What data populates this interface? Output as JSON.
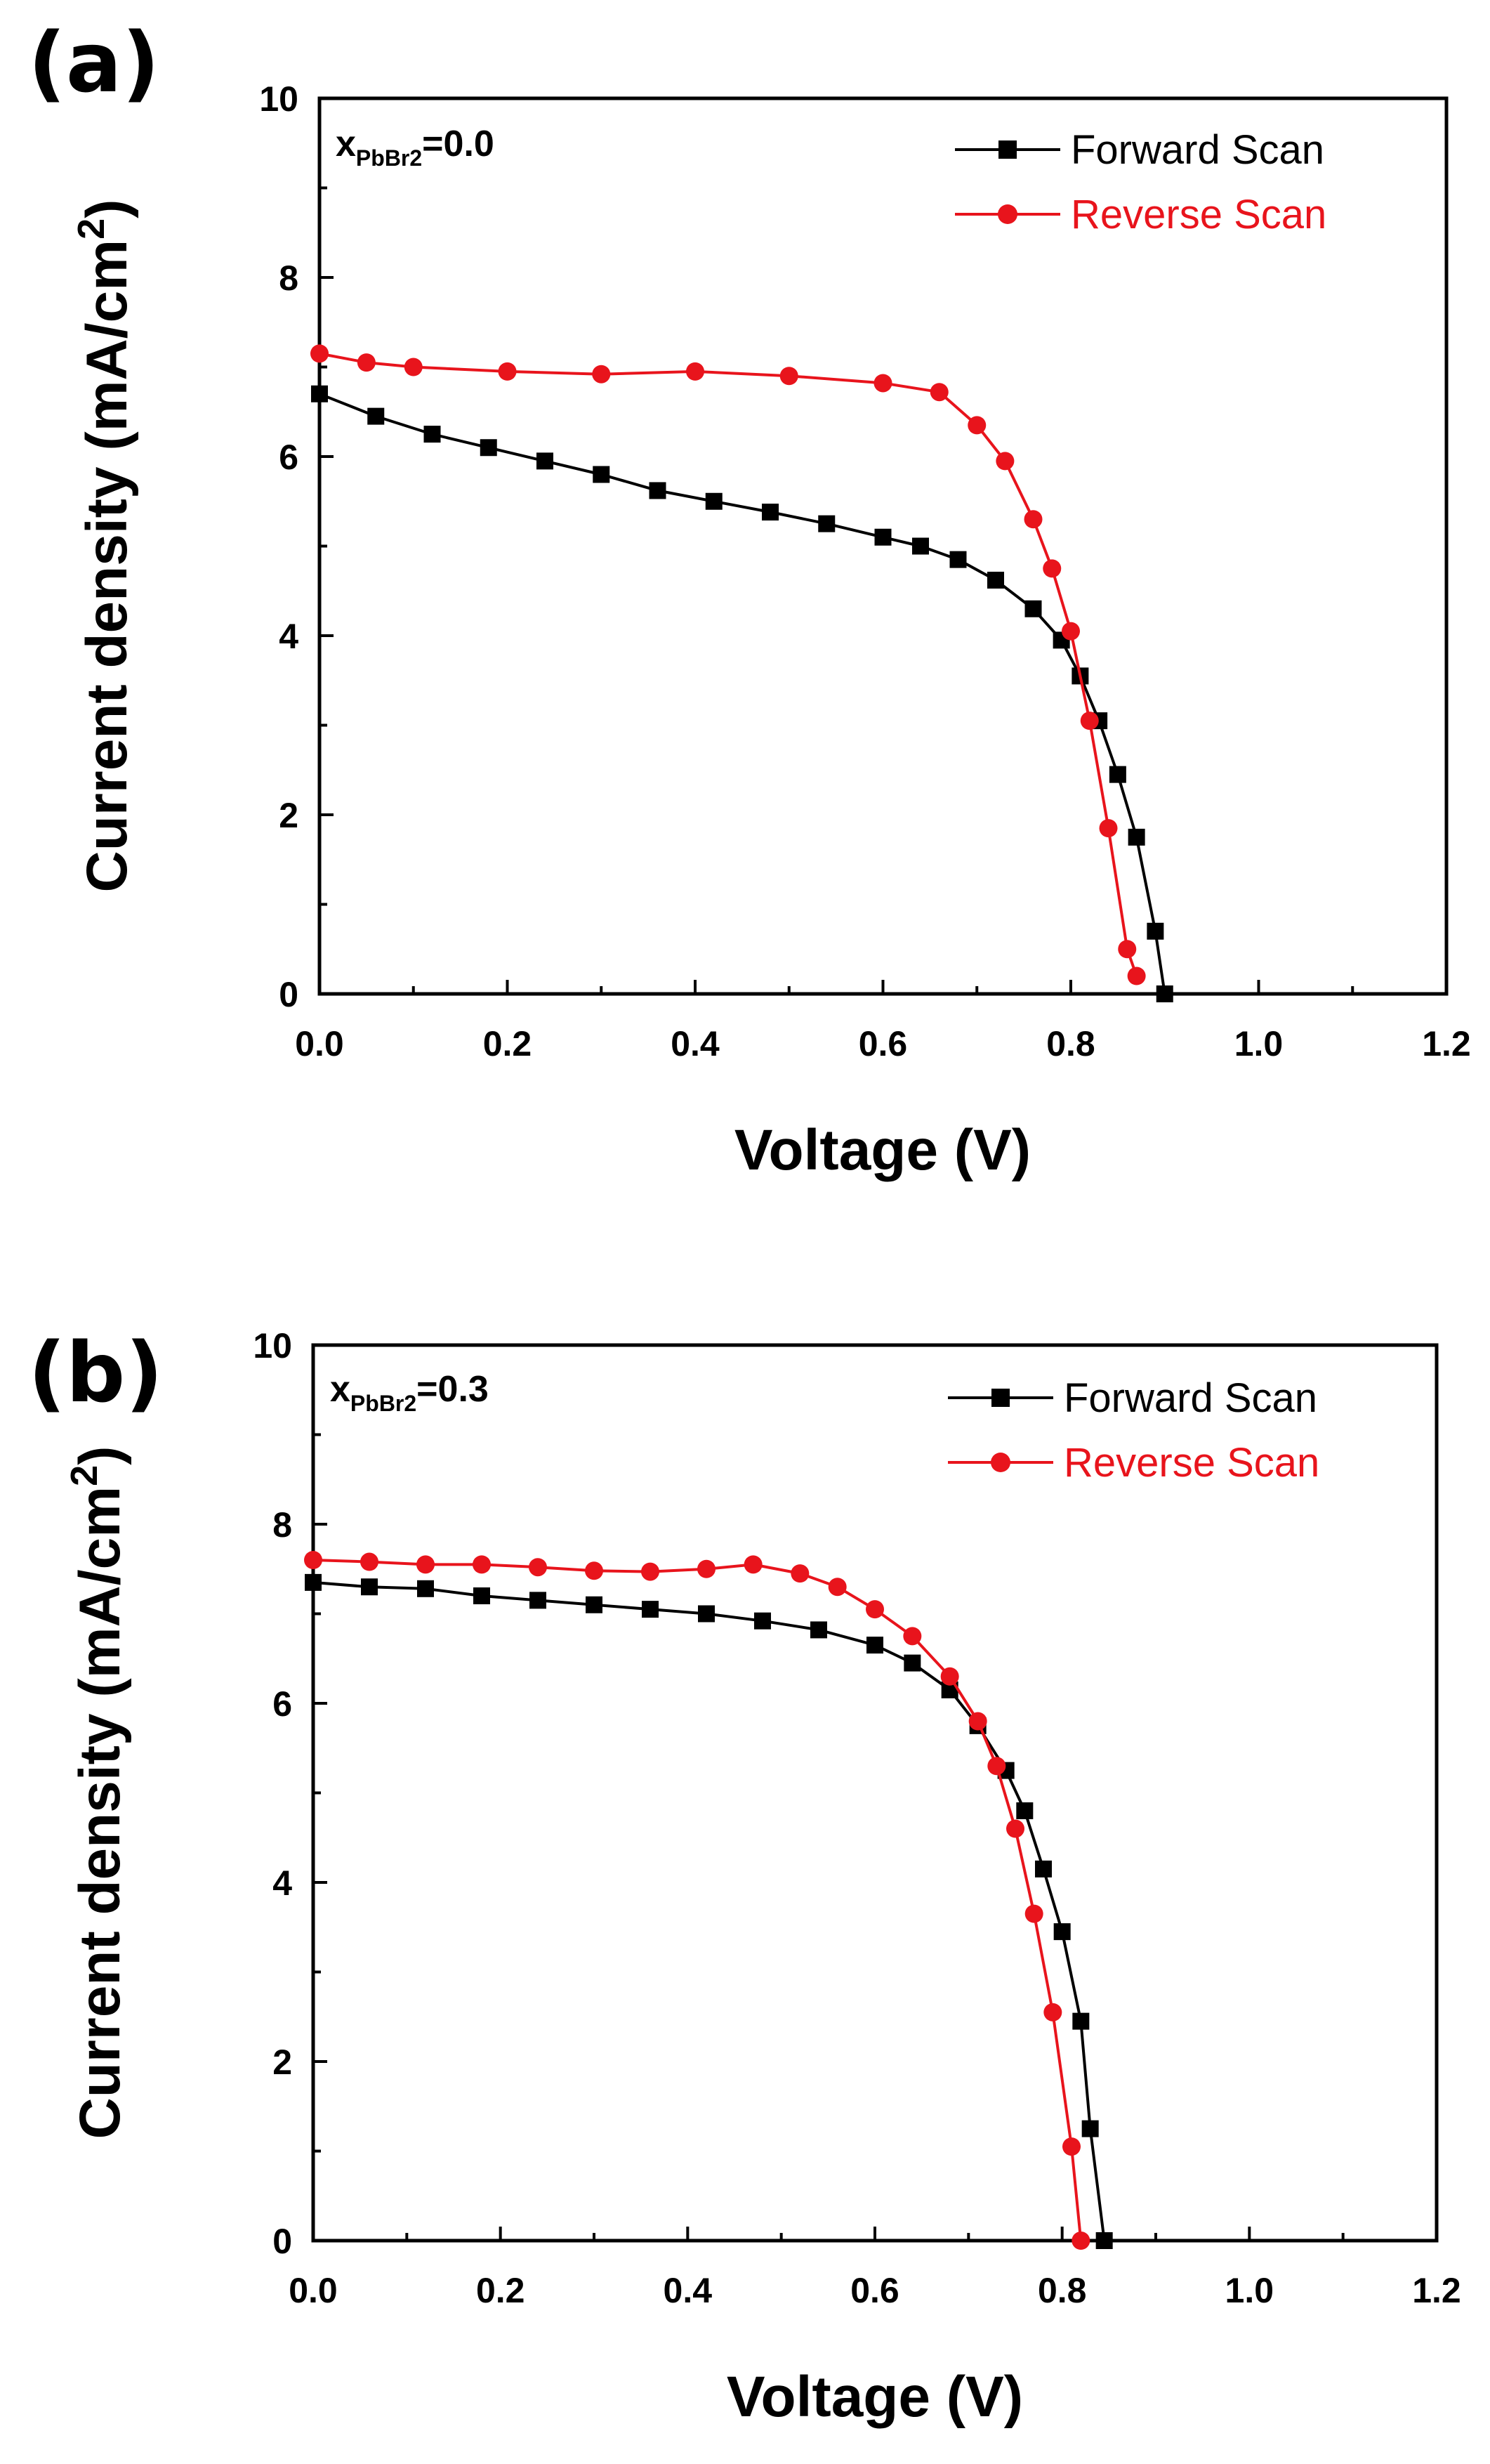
{
  "chart_data": [
    {
      "type": "line",
      "panel_label": "(a)",
      "annotation": {
        "main": "x",
        "sub": "PbBr2",
        "value": "=0.0"
      },
      "xlabel": "Voltage (V)",
      "ylabel": {
        "main": "Current density (mA/cm",
        "sup": "2",
        "close": ")"
      },
      "xlim": [
        0,
        1.2
      ],
      "ylim": [
        0,
        10
      ],
      "xticks": [
        "0.0",
        "0.2",
        "0.4",
        "0.6",
        "0.8",
        "1.0",
        "1.2"
      ],
      "yticks": [
        "0",
        "2",
        "4",
        "6",
        "8",
        "10"
      ],
      "legend_position": "top-right",
      "series": [
        {
          "name": "Forward Scan",
          "color": "#000000",
          "marker": "square",
          "x": [
            0.0,
            0.06,
            0.12,
            0.18,
            0.24,
            0.3,
            0.36,
            0.42,
            0.48,
            0.54,
            0.6,
            0.64,
            0.68,
            0.72,
            0.76,
            0.79,
            0.81,
            0.83,
            0.85,
            0.87,
            0.89,
            0.9
          ],
          "y": [
            6.7,
            6.45,
            6.25,
            6.1,
            5.95,
            5.8,
            5.62,
            5.5,
            5.38,
            5.25,
            5.1,
            5.0,
            4.85,
            4.62,
            4.3,
            3.95,
            3.55,
            3.05,
            2.45,
            1.75,
            0.7,
            0.0
          ]
        },
        {
          "name": "Reverse Scan",
          "color": "#e8141c",
          "marker": "circle",
          "x": [
            0.0,
            0.05,
            0.1,
            0.2,
            0.3,
            0.4,
            0.5,
            0.6,
            0.66,
            0.7,
            0.73,
            0.76,
            0.78,
            0.8,
            0.82,
            0.84,
            0.86,
            0.87
          ],
          "y": [
            7.15,
            7.05,
            7.0,
            6.95,
            6.92,
            6.95,
            6.9,
            6.82,
            6.72,
            6.35,
            5.95,
            5.3,
            4.75,
            4.05,
            3.05,
            1.85,
            0.5,
            0.2
          ]
        }
      ]
    },
    {
      "type": "line",
      "panel_label": "(b)",
      "annotation": {
        "main": "x",
        "sub": "PbBr2",
        "value": "=0.3"
      },
      "xlabel": "Voltage (V)",
      "ylabel": {
        "main": "Current density (mA/cm",
        "sup": "2",
        "close": ")"
      },
      "xlim": [
        0,
        1.2
      ],
      "ylim": [
        0,
        10
      ],
      "xticks": [
        "0.0",
        "0.2",
        "0.4",
        "0.6",
        "0.8",
        "1.0",
        "1.2"
      ],
      "yticks": [
        "0",
        "2",
        "4",
        "6",
        "8",
        "10"
      ],
      "legend_position": "top-right",
      "series": [
        {
          "name": "Forward Scan",
          "color": "#000000",
          "marker": "square",
          "x": [
            0.0,
            0.06,
            0.12,
            0.18,
            0.24,
            0.3,
            0.36,
            0.42,
            0.48,
            0.54,
            0.6,
            0.64,
            0.68,
            0.71,
            0.74,
            0.76,
            0.78,
            0.8,
            0.82,
            0.83,
            0.845
          ],
          "y": [
            7.35,
            7.3,
            7.28,
            7.2,
            7.15,
            7.1,
            7.05,
            7.0,
            6.92,
            6.82,
            6.65,
            6.45,
            6.15,
            5.75,
            5.25,
            4.8,
            4.15,
            3.45,
            2.45,
            1.25,
            0.0
          ]
        },
        {
          "name": "Reverse Scan",
          "color": "#e8141c",
          "marker": "circle",
          "x": [
            0.0,
            0.06,
            0.12,
            0.18,
            0.24,
            0.3,
            0.36,
            0.42,
            0.47,
            0.52,
            0.56,
            0.6,
            0.64,
            0.68,
            0.71,
            0.73,
            0.75,
            0.77,
            0.79,
            0.81,
            0.82
          ],
          "y": [
            7.6,
            7.58,
            7.55,
            7.55,
            7.52,
            7.48,
            7.47,
            7.5,
            7.55,
            7.45,
            7.3,
            7.05,
            6.75,
            6.3,
            5.8,
            5.3,
            4.6,
            3.65,
            2.55,
            1.05,
            0.0
          ]
        }
      ]
    }
  ]
}
